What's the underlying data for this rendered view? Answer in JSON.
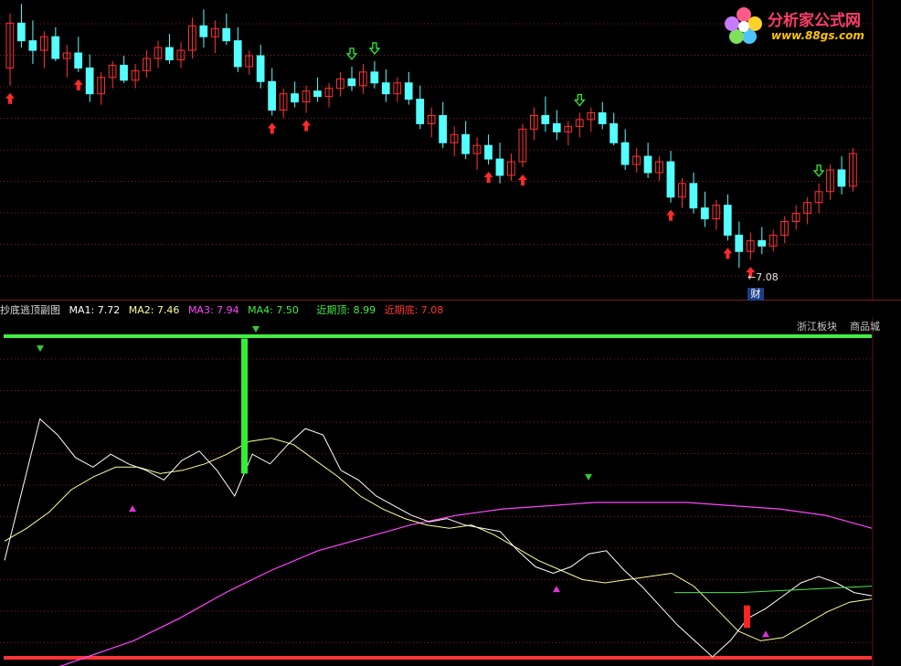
{
  "logo": {
    "name": "分析家公式网",
    "url": "www.88gs.com"
  },
  "price_panel": {
    "low_label": "7.08",
    "low_marker": "财"
  },
  "indicator_header": {
    "title": "抄底逃顶副图",
    "ma1": "MA1: 7.72",
    "ma2": "MA2: 7.46",
    "ma3": "MA3: 7.94",
    "ma4": "MA4: 7.50",
    "near_top": "近期顶: 8.99",
    "near_bottom": "近期底: 7.08"
  },
  "tags": {
    "sector": "浙江板块",
    "industry": "商品城"
  },
  "colors": {
    "up_candle": "#ff3333",
    "down_candle": "#54ffff",
    "ma1": "#ffffff",
    "ma2": "#ffff99",
    "ma3": "#ff44ff",
    "ma4": "#44ee44",
    "near_top": "#44ee44",
    "near_bottom": "#ff3333",
    "grid": "#8b1a1a"
  },
  "chart_data": {
    "type": "candlestick",
    "ohlc": [
      [
        8.55,
        8.95,
        8.42,
        8.88
      ],
      [
        8.88,
        9.02,
        8.7,
        8.75
      ],
      [
        8.75,
        8.9,
        8.58,
        8.68
      ],
      [
        8.68,
        8.82,
        8.55,
        8.78
      ],
      [
        8.78,
        8.85,
        8.6,
        8.62
      ],
      [
        8.62,
        8.72,
        8.48,
        8.66
      ],
      [
        8.66,
        8.78,
        8.52,
        8.55
      ],
      [
        8.55,
        8.65,
        8.3,
        8.36
      ],
      [
        8.36,
        8.52,
        8.28,
        8.48
      ],
      [
        8.48,
        8.6,
        8.4,
        8.57
      ],
      [
        8.57,
        8.64,
        8.44,
        8.46
      ],
      [
        8.46,
        8.58,
        8.4,
        8.53
      ],
      [
        8.53,
        8.68,
        8.48,
        8.62
      ],
      [
        8.62,
        8.75,
        8.55,
        8.7
      ],
      [
        8.7,
        8.8,
        8.58,
        8.61
      ],
      [
        8.61,
        8.74,
        8.55,
        8.68
      ],
      [
        8.68,
        8.92,
        8.62,
        8.86
      ],
      [
        8.86,
        8.98,
        8.7,
        8.78
      ],
      [
        8.78,
        8.9,
        8.66,
        8.84
      ],
      [
        8.84,
        8.95,
        8.72,
        8.75
      ],
      [
        8.75,
        8.85,
        8.52,
        8.56
      ],
      [
        8.56,
        8.68,
        8.5,
        8.64
      ],
      [
        8.64,
        8.72,
        8.4,
        8.45
      ],
      [
        8.45,
        8.55,
        8.2,
        8.24
      ],
      [
        8.24,
        8.4,
        8.18,
        8.36
      ],
      [
        8.36,
        8.45,
        8.26,
        8.3
      ],
      [
        8.3,
        8.42,
        8.22,
        8.38
      ],
      [
        8.38,
        8.48,
        8.3,
        8.34
      ],
      [
        8.34,
        8.44,
        8.26,
        8.4
      ],
      [
        8.4,
        8.52,
        8.34,
        8.47
      ],
      [
        8.47,
        8.56,
        8.38,
        8.42
      ],
      [
        8.42,
        8.58,
        8.36,
        8.52
      ],
      [
        8.52,
        8.6,
        8.4,
        8.44
      ],
      [
        8.44,
        8.54,
        8.3,
        8.36
      ],
      [
        8.36,
        8.48,
        8.3,
        8.44
      ],
      [
        8.44,
        8.52,
        8.28,
        8.32
      ],
      [
        8.32,
        8.42,
        8.1,
        8.14
      ],
      [
        8.14,
        8.26,
        8.04,
        8.2
      ],
      [
        8.2,
        8.3,
        7.96,
        8.0
      ],
      [
        8.0,
        8.12,
        7.9,
        8.06
      ],
      [
        8.06,
        8.16,
        7.88,
        7.92
      ],
      [
        7.92,
        8.04,
        7.8,
        7.98
      ],
      [
        7.98,
        8.06,
        7.84,
        7.88
      ],
      [
        7.88,
        8.0,
        7.7,
        7.76
      ],
      [
        7.76,
        7.92,
        7.72,
        7.86
      ],
      [
        7.86,
        8.14,
        7.82,
        8.1
      ],
      [
        8.1,
        8.26,
        8.02,
        8.2
      ],
      [
        8.2,
        8.34,
        8.08,
        8.14
      ],
      [
        8.14,
        8.24,
        8.02,
        8.08
      ],
      [
        8.08,
        8.16,
        7.98,
        8.12
      ],
      [
        8.12,
        8.22,
        8.04,
        8.17
      ],
      [
        8.17,
        8.26,
        8.08,
        8.22
      ],
      [
        8.22,
        8.3,
        8.1,
        8.14
      ],
      [
        8.14,
        8.22,
        7.98,
        8.0
      ],
      [
        8.0,
        8.1,
        7.8,
        7.84
      ],
      [
        7.84,
        7.96,
        7.78,
        7.9
      ],
      [
        7.9,
        8.0,
        7.74,
        7.78
      ],
      [
        7.78,
        7.9,
        7.72,
        7.86
      ],
      [
        7.86,
        7.94,
        7.56,
        7.6
      ],
      [
        7.6,
        7.74,
        7.52,
        7.7
      ],
      [
        7.7,
        7.78,
        7.48,
        7.52
      ],
      [
        7.52,
        7.64,
        7.38,
        7.44
      ],
      [
        7.44,
        7.58,
        7.36,
        7.54
      ],
      [
        7.54,
        7.62,
        7.28,
        7.32
      ],
      [
        7.32,
        7.42,
        7.08,
        7.2
      ],
      [
        7.2,
        7.34,
        7.14,
        7.28
      ],
      [
        7.28,
        7.38,
        7.18,
        7.24
      ],
      [
        7.24,
        7.36,
        7.2,
        7.32
      ],
      [
        7.32,
        7.46,
        7.26,
        7.42
      ],
      [
        7.42,
        7.54,
        7.36,
        7.48
      ],
      [
        7.48,
        7.6,
        7.4,
        7.56
      ],
      [
        7.56,
        7.7,
        7.48,
        7.64
      ],
      [
        7.64,
        7.84,
        7.58,
        7.8
      ],
      [
        7.8,
        7.9,
        7.62,
        7.68
      ],
      [
        7.68,
        7.96,
        7.64,
        7.92
      ]
    ],
    "buy_arrows_at": [
      0,
      6,
      23,
      26,
      42,
      45,
      58,
      63,
      65
    ],
    "sell_arrows_at": [
      30,
      32,
      50,
      71
    ],
    "indicator": {
      "ma1": [
        0.3,
        0.52,
        0.74,
        0.69,
        0.62,
        0.59,
        0.63,
        0.6,
        0.58,
        0.55,
        0.61,
        0.64,
        0.58,
        0.5,
        0.63,
        0.6,
        0.66,
        0.71,
        0.69,
        0.58,
        0.55,
        0.5,
        0.47,
        0.44,
        0.42,
        0.43,
        0.41,
        0.4,
        0.39,
        0.33,
        0.28,
        0.26,
        0.28,
        0.32,
        0.33,
        0.27,
        0.22,
        0.16,
        0.1,
        0.05,
        0.0,
        0.05,
        0.12,
        0.15,
        0.19,
        0.23,
        0.25,
        0.23,
        0.2,
        0.19
      ],
      "ma2": [
        0.36,
        0.4,
        0.45,
        0.52,
        0.56,
        0.59,
        0.59,
        0.57,
        0.58,
        0.6,
        0.63,
        0.67,
        0.68,
        0.66,
        0.61,
        0.56,
        0.5,
        0.46,
        0.43,
        0.41,
        0.4,
        0.41,
        0.38,
        0.34,
        0.3,
        0.27,
        0.24,
        0.23,
        0.24,
        0.25,
        0.26,
        0.22,
        0.15,
        0.08,
        0.05,
        0.06,
        0.1,
        0.14,
        0.17,
        0.18
      ],
      "ma3": [
        -0.05,
        0.0,
        0.05,
        0.12,
        0.2,
        0.27,
        0.33,
        0.37,
        0.41,
        0.44,
        0.46,
        0.47,
        0.48,
        0.48,
        0.48,
        0.47,
        0.46,
        0.44,
        0.4
      ],
      "ma4_segment": [
        0.2,
        0.2,
        0.21,
        0.22
      ],
      "near_top_line": 8.99,
      "near_bottom_line": 7.08,
      "green_bar_at": 0.57,
      "red_bar_at": 0.89,
      "up_triangles": [
        0.14,
        0.61,
        0.84
      ],
      "down_triangles": [
        0.04,
        0.28,
        0.65
      ]
    }
  }
}
